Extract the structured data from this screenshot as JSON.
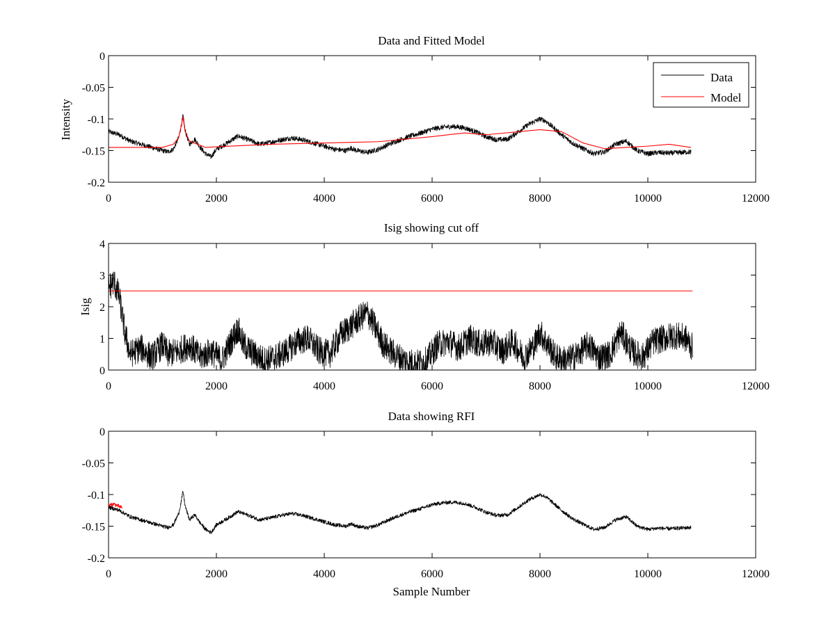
{
  "figure": {
    "background": "#ffffff"
  },
  "colors": {
    "data": "#000000",
    "model": "#ff0000",
    "axes": "#000000"
  },
  "chart_data": [
    {
      "type": "line",
      "title": "Data and Fitted Model",
      "xlabel": "",
      "ylabel": "Intensity",
      "xlim": [
        0,
        12000
      ],
      "ylim": [
        -0.2,
        0
      ],
      "xticks": [
        0,
        2000,
        4000,
        6000,
        8000,
        10000,
        12000
      ],
      "xtick_labels": [
        "0",
        "2000",
        "4000",
        "6000",
        "8000",
        "10000",
        "12000"
      ],
      "yticks": [
        0,
        -0.05,
        -0.1,
        -0.15,
        -0.2
      ],
      "ytick_labels": [
        "0",
        "-0.05",
        "-0.1",
        "-0.15",
        "-0.2"
      ],
      "legend": {
        "position": "top-right",
        "entries": [
          "Data",
          "Model"
        ]
      },
      "series": [
        {
          "name": "Data",
          "color": "#000000",
          "noise": 0.004,
          "x": [
            0,
            200,
            400,
            600,
            800,
            1000,
            1100,
            1200,
            1300,
            1350,
            1380,
            1420,
            1500,
            1600,
            1700,
            1800,
            1900,
            2000,
            2200,
            2400,
            2600,
            2800,
            3000,
            3200,
            3400,
            3600,
            3800,
            4000,
            4200,
            4400,
            4500,
            4600,
            4800,
            5000,
            5200,
            5400,
            5600,
            5800,
            6000,
            6200,
            6400,
            6600,
            6800,
            7000,
            7200,
            7400,
            7600,
            7800,
            8000,
            8100,
            8200,
            8400,
            8600,
            8800,
            9000,
            9200,
            9400,
            9600,
            9800,
            10000,
            10200,
            10400,
            10600,
            10800
          ],
          "values": [
            -0.12,
            -0.125,
            -0.135,
            -0.14,
            -0.145,
            -0.15,
            -0.152,
            -0.148,
            -0.13,
            -0.11,
            -0.095,
            -0.118,
            -0.14,
            -0.132,
            -0.145,
            -0.155,
            -0.16,
            -0.148,
            -0.138,
            -0.127,
            -0.133,
            -0.14,
            -0.137,
            -0.133,
            -0.13,
            -0.133,
            -0.138,
            -0.143,
            -0.148,
            -0.15,
            -0.146,
            -0.15,
            -0.153,
            -0.148,
            -0.14,
            -0.133,
            -0.127,
            -0.122,
            -0.116,
            -0.113,
            -0.112,
            -0.114,
            -0.12,
            -0.128,
            -0.133,
            -0.132,
            -0.12,
            -0.108,
            -0.1,
            -0.103,
            -0.11,
            -0.125,
            -0.138,
            -0.147,
            -0.155,
            -0.152,
            -0.14,
            -0.135,
            -0.15,
            -0.155,
            -0.153,
            -0.154,
            -0.153,
            -0.152
          ]
        },
        {
          "name": "Model",
          "color": "#ff0000",
          "noise": 0,
          "x": [
            0,
            500,
            1000,
            1200,
            1300,
            1350,
            1380,
            1420,
            1500,
            1800,
            2000,
            3000,
            4000,
            5000,
            6000,
            6600,
            7000,
            8000,
            8400,
            8800,
            9200,
            9600,
            10000,
            10400,
            10800
          ],
          "values": [
            -0.145,
            -0.145,
            -0.145,
            -0.14,
            -0.13,
            -0.11,
            -0.097,
            -0.12,
            -0.135,
            -0.145,
            -0.144,
            -0.14,
            -0.138,
            -0.136,
            -0.128,
            -0.122,
            -0.125,
            -0.117,
            -0.12,
            -0.138,
            -0.147,
            -0.145,
            -0.143,
            -0.14,
            -0.145
          ]
        }
      ]
    },
    {
      "type": "line",
      "title": "Isig showing cut off",
      "xlabel": "",
      "ylabel": "Isig",
      "xlim": [
        0,
        12000
      ],
      "ylim": [
        0,
        4
      ],
      "xticks": [
        0,
        2000,
        4000,
        6000,
        8000,
        10000,
        12000
      ],
      "xtick_labels": [
        "0",
        "2000",
        "4000",
        "6000",
        "8000",
        "10000",
        "12000"
      ],
      "yticks": [
        4,
        3,
        2,
        1,
        0
      ],
      "ytick_labels": [
        "4",
        "3",
        "2",
        "1",
        "0"
      ],
      "series": [
        {
          "name": "Isig",
          "color": "#000000",
          "noise": 0.45,
          "x": [
            0,
            100,
            200,
            300,
            400,
            600,
            800,
            1000,
            1100,
            1300,
            1500,
            1700,
            1900,
            2100,
            2300,
            2400,
            2500,
            2700,
            2900,
            3100,
            3300,
            3500,
            3700,
            3900,
            4100,
            4300,
            4500,
            4700,
            4800,
            4900,
            5100,
            5300,
            5500,
            5700,
            5900,
            6100,
            6300,
            6500,
            6700,
            6900,
            7100,
            7300,
            7500,
            7700,
            7900,
            8000,
            8100,
            8300,
            8500,
            8700,
            8900,
            9100,
            9300,
            9500,
            9700,
            9900,
            10100,
            10300,
            10500,
            10700,
            10830
          ],
          "values": [
            2.6,
            2.8,
            2.3,
            1.2,
            0.5,
            0.7,
            0.4,
            0.8,
            0.5,
            0.6,
            0.8,
            0.4,
            0.6,
            0.3,
            1.0,
            1.3,
            0.8,
            0.5,
            0.3,
            0.4,
            0.6,
            0.9,
            1.0,
            0.6,
            0.5,
            1.1,
            1.4,
            1.7,
            1.8,
            1.5,
            0.8,
            0.5,
            0.3,
            0.2,
            0.3,
            0.8,
            0.9,
            0.7,
            1.0,
            0.8,
            0.9,
            0.6,
            0.9,
            0.4,
            0.8,
            1.2,
            0.9,
            0.4,
            0.3,
            0.5,
            0.8,
            0.4,
            0.5,
            1.2,
            0.6,
            0.4,
            0.9,
            1.0,
            1.1,
            1.0,
            0.7
          ]
        },
        {
          "name": "Cut off",
          "color": "#ff0000",
          "noise": 0,
          "x": [
            0,
            10830
          ],
          "values": [
            2.5,
            2.5
          ]
        }
      ]
    },
    {
      "type": "line",
      "title": "Data showing RFI",
      "xlabel": "Sample Number",
      "ylabel": "",
      "xlim": [
        0,
        12000
      ],
      "ylim": [
        -0.2,
        0
      ],
      "xticks": [
        0,
        2000,
        4000,
        6000,
        8000,
        10000,
        12000
      ],
      "xtick_labels": [
        "0",
        "2000",
        "4000",
        "6000",
        "8000",
        "10000",
        "12000"
      ],
      "yticks": [
        0,
        -0.05,
        -0.1,
        -0.15,
        -0.2
      ],
      "ytick_labels": [
        "0",
        "-0.05",
        "-0.1",
        "-0.15",
        "-0.2"
      ],
      "series": [
        {
          "name": "Data",
          "color": "#000000",
          "noise": 0.003,
          "x": [
            0,
            200,
            400,
            600,
            800,
            1000,
            1100,
            1200,
            1300,
            1350,
            1380,
            1420,
            1500,
            1600,
            1700,
            1800,
            1900,
            2000,
            2200,
            2400,
            2600,
            2800,
            3000,
            3200,
            3400,
            3600,
            3800,
            4000,
            4200,
            4400,
            4500,
            4600,
            4800,
            5000,
            5200,
            5400,
            5600,
            5800,
            6000,
            6200,
            6400,
            6600,
            6800,
            7000,
            7200,
            7400,
            7600,
            7800,
            8000,
            8100,
            8200,
            8400,
            8600,
            8800,
            9000,
            9200,
            9400,
            9600,
            9800,
            10000,
            10200,
            10400,
            10600,
            10800
          ],
          "values": [
            -0.12,
            -0.125,
            -0.135,
            -0.14,
            -0.145,
            -0.15,
            -0.152,
            -0.148,
            -0.13,
            -0.11,
            -0.095,
            -0.118,
            -0.14,
            -0.132,
            -0.145,
            -0.155,
            -0.16,
            -0.148,
            -0.138,
            -0.127,
            -0.133,
            -0.14,
            -0.137,
            -0.133,
            -0.13,
            -0.133,
            -0.138,
            -0.143,
            -0.148,
            -0.15,
            -0.146,
            -0.15,
            -0.153,
            -0.148,
            -0.14,
            -0.133,
            -0.127,
            -0.122,
            -0.116,
            -0.113,
            -0.112,
            -0.114,
            -0.12,
            -0.128,
            -0.133,
            -0.132,
            -0.12,
            -0.108,
            -0.1,
            -0.103,
            -0.11,
            -0.125,
            -0.138,
            -0.147,
            -0.155,
            -0.152,
            -0.14,
            -0.135,
            -0.15,
            -0.155,
            -0.153,
            -0.154,
            -0.153,
            -0.152
          ]
        },
        {
          "name": "RFI",
          "color": "#ff0000",
          "noise": 0.003,
          "x": [
            0,
            50,
            100,
            150,
            200,
            250
          ],
          "values": [
            -0.118,
            -0.116,
            -0.115,
            -0.117,
            -0.119,
            -0.121
          ]
        }
      ]
    }
  ]
}
